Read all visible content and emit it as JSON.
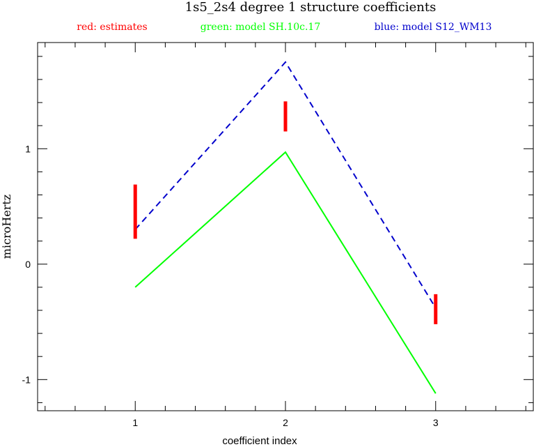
{
  "chart_data": {
    "type": "line",
    "title": "1s5_2s4 degree 1 structure coefficients",
    "legend": [
      {
        "label": "red: estimates",
        "color": "#ff0000"
      },
      {
        "label": "green: model SH.10c.17",
        "color": "#00ff00"
      },
      {
        "label": "blue: model S12_WM13",
        "color": "#0000cc"
      }
    ],
    "xlabel": "coefficient index",
    "ylabel": "microHertz",
    "xlim": [
      0.35,
      3.65
    ],
    "ylim": [
      -1.27,
      1.92
    ],
    "x_ticks": [
      1,
      2,
      3
    ],
    "x_tick_labels": [
      "1",
      "2",
      "3"
    ],
    "y_ticks": [
      -1,
      0,
      1
    ],
    "y_tick_labels": [
      "-1",
      "0",
      "1"
    ],
    "x_minor_step": 0.2,
    "y_minor_step": 0.2,
    "grid": false,
    "legend_position": "top",
    "series": [
      {
        "name": "model SH.10c.17",
        "style": "solid",
        "color": "#00ff00",
        "x": [
          1,
          2,
          3
        ],
        "y": [
          -0.2,
          0.97,
          -1.12
        ]
      },
      {
        "name": "model S12_WM13",
        "style": "dashed",
        "color": "#0000cc",
        "x": [
          1,
          2,
          3
        ],
        "y": [
          0.3,
          1.75,
          -0.38
        ]
      }
    ],
    "error_bars": {
      "name": "estimates",
      "color": "#ff0000",
      "x": [
        1,
        2,
        3
      ],
      "ymin": [
        0.22,
        1.15,
        -0.52
      ],
      "ymax": [
        0.69,
        1.41,
        -0.26
      ]
    }
  }
}
